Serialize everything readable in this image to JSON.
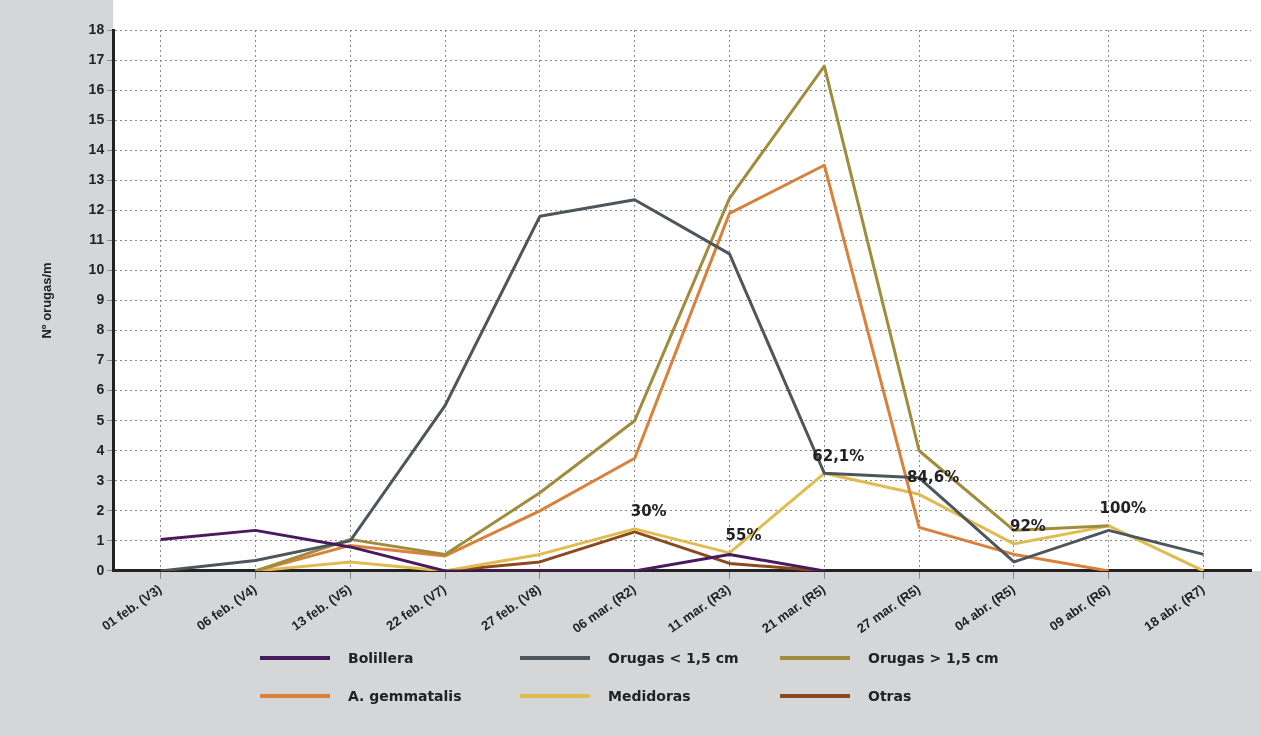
{
  "chart_data": {
    "type": "line",
    "ylabel": "Nº orugas/m",
    "categories": [
      "01 feb. (V3)",
      "06 feb. (V4)",
      "13 feb. (V5)",
      "22 feb. (V7)",
      "27 feb. (V8)",
      "06 mar. (R2)",
      "11 mar. (R3)",
      "21 mar. (R5)",
      "27 mar. (R5)",
      "04 abr. (R5)",
      "09 abr. (R6)",
      "18 abr. (R7)"
    ],
    "series": [
      {
        "name": "Bolillera",
        "color": "#4a1a5e",
        "values": [
          1.05,
          1.35,
          0.8,
          0,
          0,
          0,
          0.55,
          0,
          null,
          null,
          null,
          null
        ]
      },
      {
        "name": "Orugas < 1,5 cm",
        "color": "#4d565c",
        "values": [
          0,
          0.35,
          1.0,
          5.5,
          11.8,
          12.35,
          10.55,
          3.25,
          3.1,
          0.3,
          1.35,
          0.55
        ]
      },
      {
        "name": "Orugas > 1,5 cm",
        "color": "#a08c3c",
        "values": [
          null,
          0,
          1.05,
          0.55,
          2.6,
          5.0,
          12.4,
          16.8,
          4.0,
          1.35,
          1.5,
          null
        ]
      },
      {
        "name": "A. gemmatalis",
        "color": "#d9803a",
        "values": [
          null,
          0,
          0.85,
          0.5,
          2.0,
          3.75,
          11.9,
          13.5,
          1.45,
          0.55,
          0,
          null
        ]
      },
      {
        "name": "Medidoras",
        "color": "#e0bc50",
        "values": [
          null,
          0,
          0.3,
          0,
          0.55,
          1.4,
          0.6,
          3.25,
          2.55,
          0.9,
          1.5,
          0
        ]
      },
      {
        "name": "Otras",
        "color": "#8b4a1e",
        "values": [
          null,
          null,
          null,
          0,
          0.3,
          1.3,
          0.25,
          0,
          null,
          null,
          null,
          null
        ]
      }
    ],
    "ylim": [
      0,
      18
    ],
    "yticks": [
      0,
      1,
      2,
      3,
      4,
      5,
      6,
      7,
      8,
      9,
      10,
      11,
      12,
      13,
      14,
      15,
      16,
      17,
      18
    ],
    "grid": true,
    "legend": "bottom",
    "marker": "none",
    "line_style": "solid",
    "annotations": [
      {
        "text": "30%",
        "x": "06 mar. (R2)",
        "y": 1.4
      },
      {
        "text": "55%",
        "x": "11 mar. (R3)",
        "y": 0.6
      },
      {
        "text": "62,1%",
        "x": "21 mar. (R5)",
        "y": 3.25
      },
      {
        "text": "84,6%",
        "x": "27 mar. (R5)",
        "y": 2.55
      },
      {
        "text": "92%",
        "x": "04 abr. (R5)",
        "y": 0.9
      },
      {
        "text": "100%",
        "x": "09 abr. (R6)",
        "y": 1.5
      }
    ]
  }
}
